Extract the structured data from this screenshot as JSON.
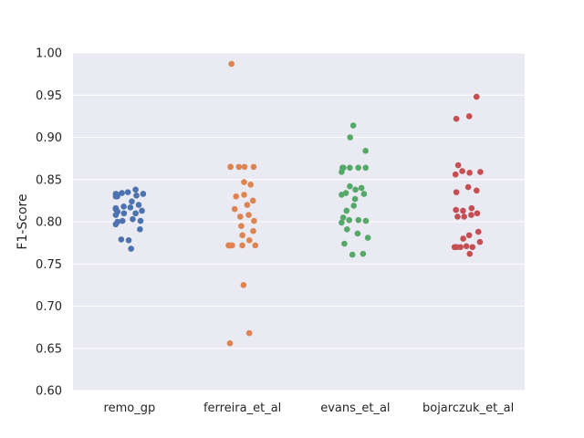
{
  "chart_data": {
    "type": "scatter",
    "title": "",
    "xlabel": "",
    "ylabel": "F1-Score",
    "ylim": [
      0.6,
      1.0
    ],
    "yticks": [
      "0.60",
      "0.65",
      "0.70",
      "0.75",
      "0.80",
      "0.85",
      "0.90",
      "0.95",
      "1.00"
    ],
    "grid": true,
    "categories": [
      "remo_gp",
      "ferreira_et_al",
      "evans_et_al",
      "bojarczuk_et_al"
    ],
    "colors": [
      "#4c72b0",
      "#dd8452",
      "#55a868",
      "#c44e52"
    ],
    "background": "#eaeaf2",
    "series": [
      {
        "category": "remo_gp",
        "values": [
          0.838,
          0.835,
          0.834,
          0.833,
          0.833,
          0.832,
          0.832,
          0.831,
          0.83,
          0.83,
          0.824,
          0.82,
          0.818,
          0.817,
          0.816,
          0.816,
          0.815,
          0.813,
          0.812,
          0.81,
          0.81,
          0.808,
          0.803,
          0.801,
          0.801,
          0.8,
          0.797,
          0.791,
          0.779,
          0.778,
          0.768
        ]
      },
      {
        "category": "ferreira_et_al",
        "values": [
          0.987,
          0.865,
          0.865,
          0.865,
          0.865,
          0.865,
          0.847,
          0.844,
          0.832,
          0.83,
          0.825,
          0.82,
          0.815,
          0.808,
          0.806,
          0.801,
          0.795,
          0.789,
          0.784,
          0.778,
          0.772,
          0.772,
          0.772,
          0.772,
          0.772,
          0.772,
          0.772,
          0.725,
          0.668,
          0.656
        ]
      },
      {
        "category": "evans_et_al",
        "values": [
          0.914,
          0.9,
          0.884,
          0.864,
          0.864,
          0.864,
          0.864,
          0.864,
          0.859,
          0.842,
          0.84,
          0.838,
          0.834,
          0.833,
          0.832,
          0.827,
          0.819,
          0.813,
          0.805,
          0.802,
          0.802,
          0.801,
          0.799,
          0.791,
          0.786,
          0.781,
          0.774,
          0.762,
          0.761
        ]
      },
      {
        "category": "bojarczuk_et_al",
        "values": [
          0.948,
          0.925,
          0.922,
          0.867,
          0.86,
          0.859,
          0.858,
          0.856,
          0.841,
          0.837,
          0.835,
          0.816,
          0.814,
          0.813,
          0.81,
          0.808,
          0.806,
          0.806,
          0.788,
          0.784,
          0.78,
          0.776,
          0.771,
          0.77,
          0.77,
          0.77,
          0.77,
          0.77,
          0.762
        ]
      }
    ]
  }
}
